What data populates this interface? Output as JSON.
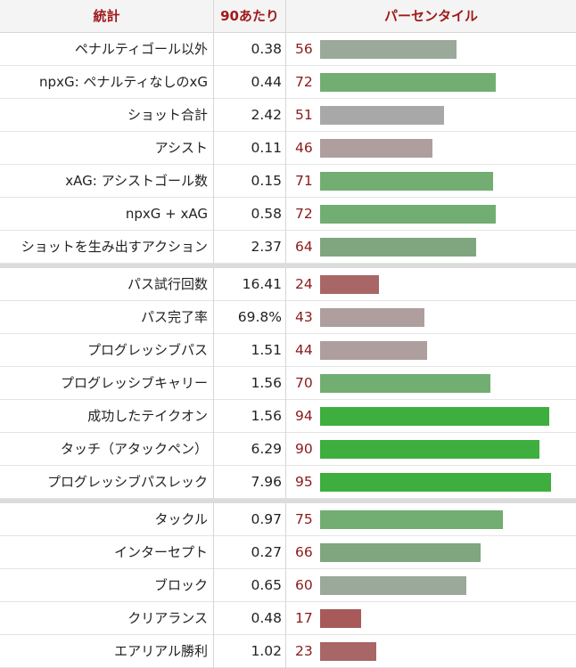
{
  "header": {
    "stat": "統計",
    "per90": "90あたり",
    "percentile": "パーセンタイル"
  },
  "groups": [
    {
      "rows": [
        {
          "stat": "ペナルティゴール以外",
          "per90": "0.38",
          "percentile": "56",
          "color": "#9aa99a"
        },
        {
          "stat": "npxG: ペナルティなしのxG",
          "per90": "0.44",
          "percentile": "72",
          "color": "#72ad72"
        },
        {
          "stat": "ショット合計",
          "per90": "2.42",
          "percentile": "51",
          "color": "#a8a8a8"
        },
        {
          "stat": "アシスト",
          "per90": "0.11",
          "percentile": "46",
          "color": "#ae9e9e"
        },
        {
          "stat": "xAG: アシストゴール数",
          "per90": "0.15",
          "percentile": "71",
          "color": "#72ad72"
        },
        {
          "stat": "npxG + xAG",
          "per90": "0.58",
          "percentile": "72",
          "color": "#72ad72"
        },
        {
          "stat": "ショットを生み出すアクション",
          "per90": "2.37",
          "percentile": "64",
          "color": "#7fa67f"
        }
      ]
    },
    {
      "rows": [
        {
          "stat": "パス試行回数",
          "per90": "16.41",
          "percentile": "24",
          "color": "#a86666"
        },
        {
          "stat": "パス完了率",
          "per90": "69.8%",
          "percentile": "43",
          "color": "#ae9e9e"
        },
        {
          "stat": "プログレッシブパス",
          "per90": "1.51",
          "percentile": "44",
          "color": "#ae9e9e"
        },
        {
          "stat": "プログレッシブキャリー",
          "per90": "1.56",
          "percentile": "70",
          "color": "#72ad72"
        },
        {
          "stat": "成功したテイクオン",
          "per90": "1.56",
          "percentile": "94",
          "color": "#3eae3e"
        },
        {
          "stat": "タッチ（アタックペン）",
          "per90": "6.29",
          "percentile": "90",
          "color": "#3eae3e"
        },
        {
          "stat": "プログレッシブパスレック",
          "per90": "7.96",
          "percentile": "95",
          "color": "#3eae3e"
        }
      ]
    },
    {
      "rows": [
        {
          "stat": "タックル",
          "per90": "0.97",
          "percentile": "75",
          "color": "#72ad72"
        },
        {
          "stat": "インターセプト",
          "per90": "0.27",
          "percentile": "66",
          "color": "#7fa67f"
        },
        {
          "stat": "ブロック",
          "per90": "0.65",
          "percentile": "60",
          "color": "#9aa99a"
        },
        {
          "stat": "クリアランス",
          "per90": "0.48",
          "percentile": "17",
          "color": "#a85a5a"
        },
        {
          "stat": "エアリアル勝利",
          "per90": "1.02",
          "percentile": "23",
          "color": "#a86666"
        }
      ]
    }
  ]
}
